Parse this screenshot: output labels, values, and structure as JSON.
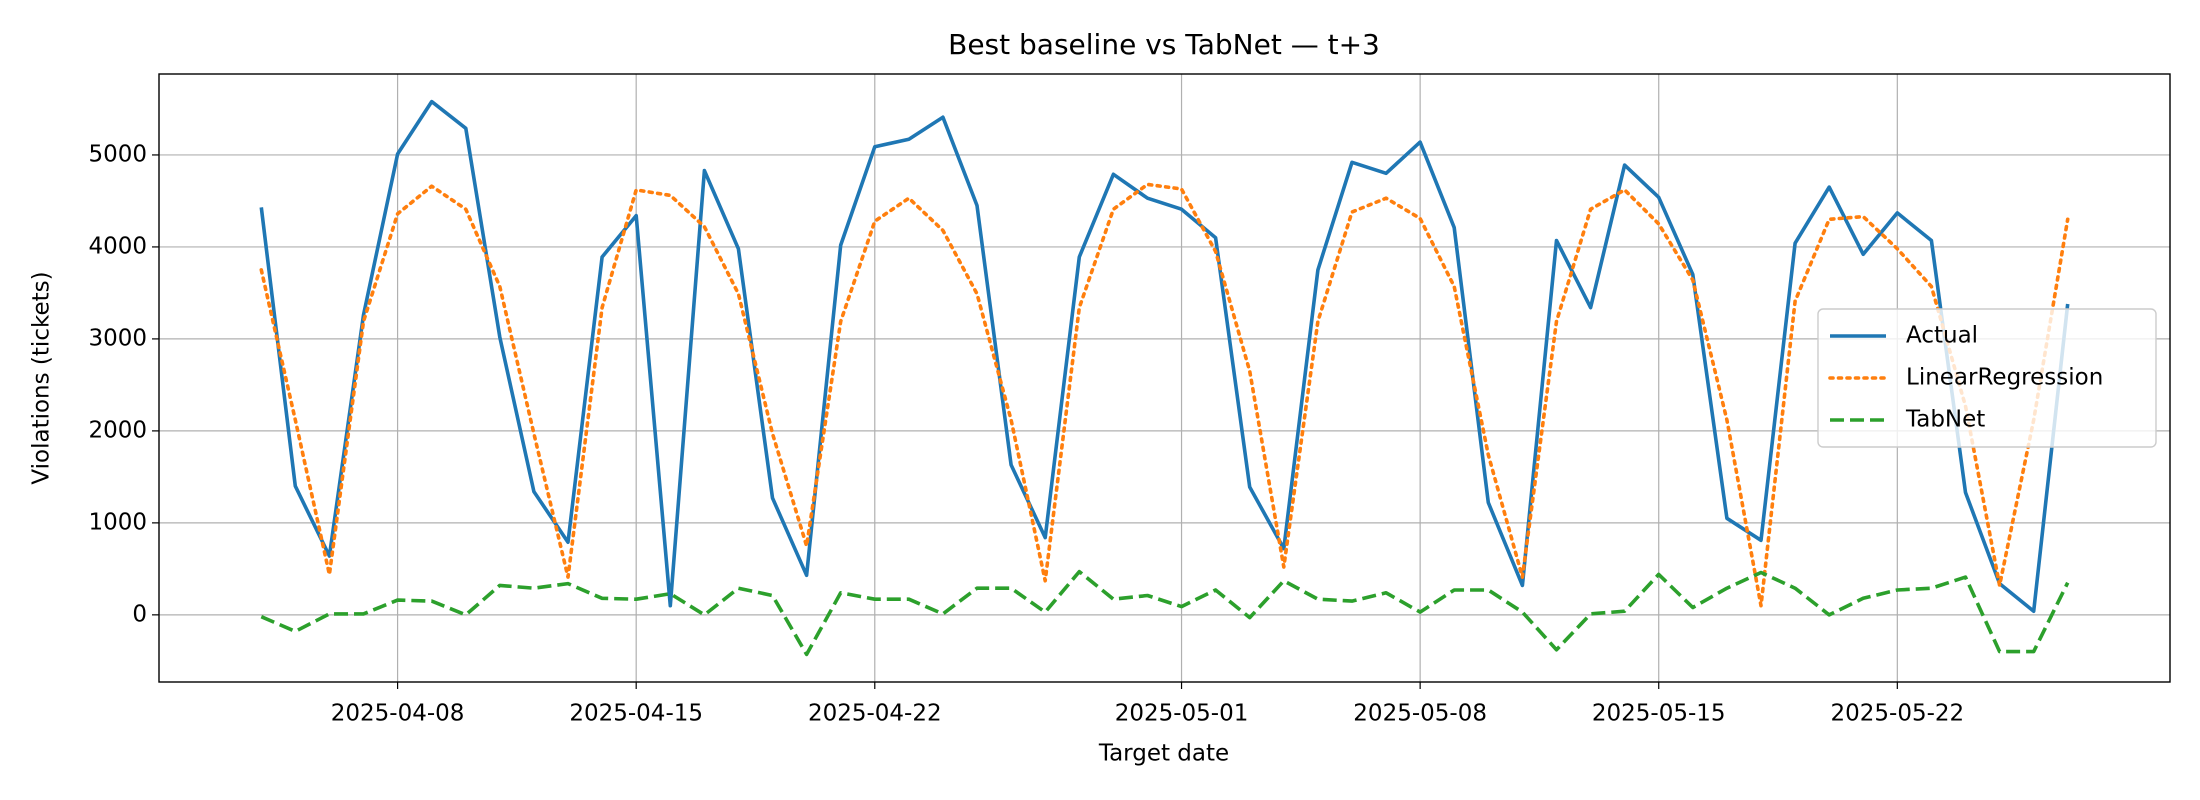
{
  "chart_data": {
    "type": "line",
    "title": "Best baseline vs TabNet — t+3",
    "xlabel": "Target date",
    "ylabel": "Violations (tickets)",
    "x": [
      "2025-04-04",
      "2025-04-05",
      "2025-04-06",
      "2025-04-07",
      "2025-04-08",
      "2025-04-09",
      "2025-04-10",
      "2025-04-11",
      "2025-04-12",
      "2025-04-13",
      "2025-04-14",
      "2025-04-15",
      "2025-04-16",
      "2025-04-17",
      "2025-04-18",
      "2025-04-19",
      "2025-04-20",
      "2025-04-21",
      "2025-04-22",
      "2025-04-23",
      "2025-04-24",
      "2025-04-25",
      "2025-04-26",
      "2025-04-27",
      "2025-04-28",
      "2025-04-29",
      "2025-04-30",
      "2025-05-01",
      "2025-05-02",
      "2025-05-03",
      "2025-05-04",
      "2025-05-05",
      "2025-05-06",
      "2025-05-07",
      "2025-05-08",
      "2025-05-09",
      "2025-05-10",
      "2025-05-11",
      "2025-05-12",
      "2025-05-13",
      "2025-05-14",
      "2025-05-15",
      "2025-05-16",
      "2025-05-17",
      "2025-05-18",
      "2025-05-19",
      "2025-05-20",
      "2025-05-21",
      "2025-05-22",
      "2025-05-23",
      "2025-05-24",
      "2025-05-25",
      "2025-05-26",
      "2025-05-27"
    ],
    "series": [
      {
        "name": "Actual",
        "color": "#1f77b4",
        "linestyle": "solid",
        "values": [
          4430,
          1400,
          640,
          3260,
          5010,
          5580,
          5290,
          3020,
          1340,
          790,
          3890,
          4340,
          100,
          4830,
          3980,
          1270,
          430,
          4020,
          5090,
          5170,
          5410,
          4450,
          1630,
          840,
          3890,
          4790,
          4530,
          4410,
          4100,
          1390,
          720,
          3750,
          4920,
          4800,
          5140,
          4210,
          1220,
          320,
          4070,
          3340,
          4890,
          4540,
          3700,
          1050,
          810,
          4040,
          4650,
          3920,
          4370,
          4070,
          1330,
          340,
          40,
          3380
        ]
      },
      {
        "name": "LinearRegression",
        "color": "#ff7f0e",
        "linestyle": "dotted",
        "values": [
          3750,
          2120,
          440,
          3190,
          4360,
          4660,
          4410,
          3570,
          1970,
          410,
          3340,
          4620,
          4560,
          4220,
          3490,
          1970,
          750,
          3190,
          4280,
          4530,
          4180,
          3490,
          2120,
          370,
          3340,
          4410,
          4680,
          4630,
          3950,
          2650,
          520,
          3190,
          4380,
          4530,
          4310,
          3570,
          1740,
          410,
          3190,
          4410,
          4620,
          4250,
          3640,
          2120,
          100,
          3410,
          4300,
          4330,
          3980,
          3570,
          2270,
          320,
          2120,
          4300
        ]
      },
      {
        "name": "TabNet",
        "color": "#2ca02c",
        "linestyle": "dashed",
        "values": [
          -20,
          -180,
          10,
          10,
          160,
          150,
          0,
          320,
          290,
          340,
          180,
          170,
          230,
          0,
          290,
          210,
          -430,
          240,
          170,
          170,
          10,
          290,
          290,
          30,
          470,
          170,
          210,
          90,
          270,
          -30,
          370,
          170,
          150,
          240,
          30,
          270,
          270,
          30,
          -380,
          10,
          40,
          440,
          80,
          290,
          460,
          290,
          0,
          180,
          270,
          290,
          410,
          -400,
          -400,
          350
        ]
      }
    ],
    "xlim": [
      "2025-04-01",
      "2025-05-30"
    ],
    "xticks": [
      "2025-04-08",
      "2025-04-15",
      "2025-04-22",
      "2025-05-01",
      "2025-05-08",
      "2025-05-15",
      "2025-05-22"
    ],
    "ylim": [
      -730,
      5880
    ],
    "yticks": [
      0,
      1000,
      2000,
      3000,
      4000,
      5000
    ],
    "grid": true,
    "legend": "center right"
  }
}
